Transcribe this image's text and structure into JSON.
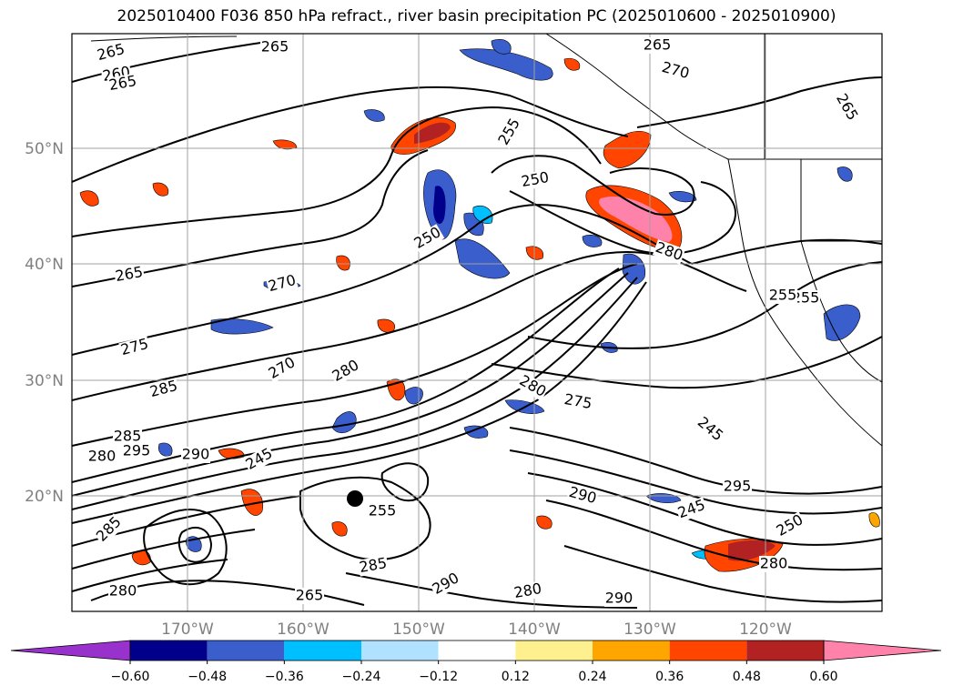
{
  "title": "2025010400 F036 850 hPa refract., river basin precipitation PC (2025010600 - 2025010900)",
  "map": {
    "lat_labels": [
      "50°N",
      "40°N",
      "30°N",
      "20°N"
    ],
    "lon_labels": [
      "170°W",
      "160°W",
      "150°W",
      "140°W",
      "130°W",
      "120°W"
    ],
    "contour_labels": [
      "265",
      "265",
      "265",
      "260",
      "265",
      "270",
      "265",
      "255",
      "250",
      "280",
      "255",
      "265",
      "270",
      "275",
      "285",
      "285",
      "280",
      "295",
      "290",
      "280",
      "270",
      "245",
      "280",
      "275",
      "245",
      "290",
      "295",
      "250",
      "245",
      "285",
      "255",
      "290",
      "280",
      "290",
      "285",
      "280",
      "265",
      "280",
      "250",
      "255"
    ]
  },
  "colorbar": {
    "tick_labels": [
      "−0.60",
      "−0.48",
      "−0.36",
      "−0.24",
      "−0.12",
      "0.12",
      "0.24",
      "0.36",
      "0.48",
      "0.60"
    ],
    "colors": [
      "#9932cc",
      "#00008b",
      "#3a5fcd",
      "#00bfff",
      "#b0e2ff",
      "#ffffff",
      "#fff08f",
      "#ffa500",
      "#ff4500",
      "#b22222",
      "#ff82ab"
    ]
  }
}
